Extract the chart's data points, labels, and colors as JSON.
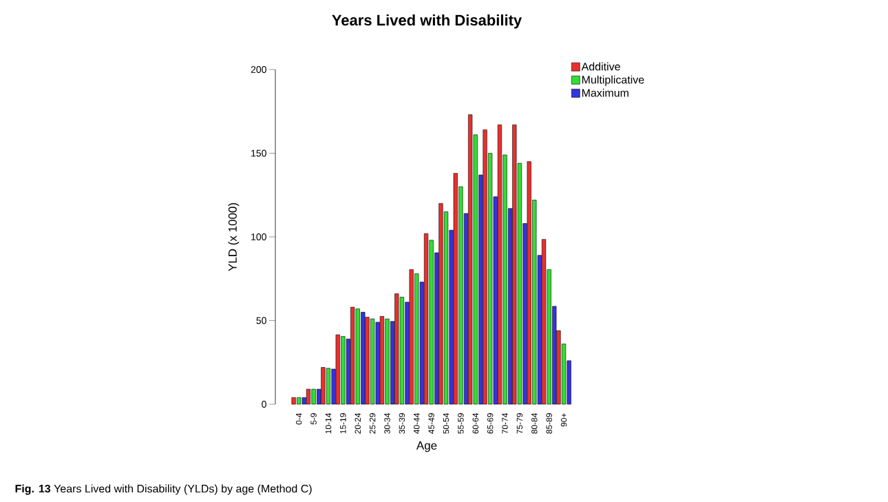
{
  "chart_data": {
    "type": "bar",
    "title": "Years Lived with Disability",
    "xlabel": "Age",
    "ylabel": "YLD (x 1000)",
    "categories": [
      "0-4",
      "5-9",
      "10-14",
      "15-19",
      "20-24",
      "25-29",
      "30-34",
      "35-39",
      "40-44",
      "45-49",
      "50-54",
      "55-59",
      "60-64",
      "65-69",
      "70-74",
      "75-79",
      "80-84",
      "85-89",
      "90+"
    ],
    "series": [
      {
        "name": "Additive",
        "color": "#e8302e",
        "values": [
          4,
          9,
          22,
          41.5,
          58,
          52,
          52.5,
          66,
          80.5,
          102,
          120,
          138,
          173,
          164,
          167,
          167,
          145,
          98.5,
          44
        ]
      },
      {
        "name": "Multiplicative",
        "color": "#33dd33",
        "values": [
          4,
          9,
          21.5,
          40.5,
          57,
          51,
          51,
          64,
          78,
          98,
          115,
          130,
          161,
          150,
          149,
          144,
          122,
          80.5,
          36
        ]
      },
      {
        "name": "Maximum",
        "color": "#3333e0",
        "values": [
          4,
          9,
          21,
          39,
          55,
          49,
          49.5,
          61,
          73,
          90.5,
          104,
          114,
          137,
          124,
          117,
          108,
          89,
          58.5,
          26
        ]
      }
    ],
    "ylim": [
      0,
      200
    ],
    "yticks": [
      0,
      50,
      100,
      150,
      200
    ],
    "legend": "top right",
    "annotations": [
      "**Fig. 13** Years Lived with Disability (YLDs) by age (Method C)"
    ]
  }
}
